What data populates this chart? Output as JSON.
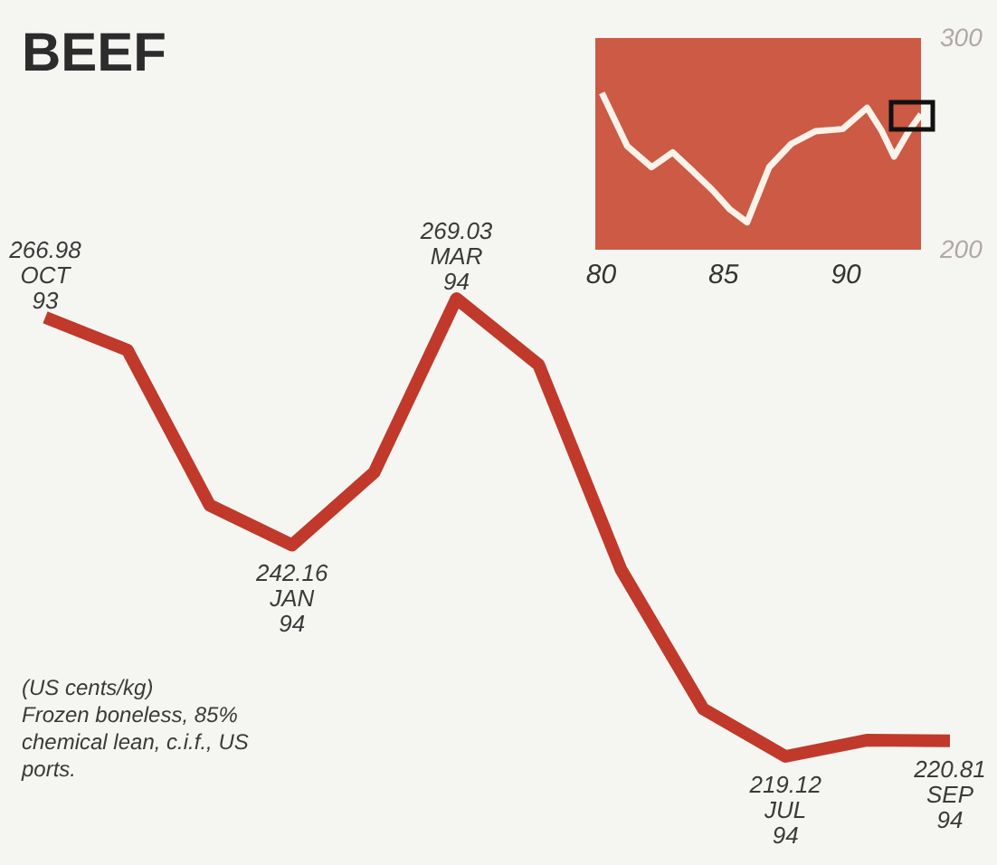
{
  "chart_data": [
    {
      "type": "line",
      "title": "BEEF",
      "categories": [
        "OCT 93",
        null,
        null,
        "JAN 94",
        null,
        "MAR 94",
        null,
        null,
        null,
        "JUL 94",
        null,
        "SEP 94"
      ],
      "values": [
        266.98,
        263.4,
        246.5,
        242.16,
        250.1,
        269.03,
        261.8,
        239.5,
        224.3,
        219.12,
        220.9,
        220.81
      ],
      "value_labels": [
        "266.98",
        null,
        null,
        "242.16",
        null,
        "269.03",
        null,
        null,
        null,
        "219.12",
        null,
        "220.81"
      ],
      "color": "#c0392a",
      "tick_labels": false,
      "annotations": [
        "(US cents/kg)",
        "Frozen boneless, 85% chemical lean, c.i.f., US ports."
      ]
    },
    {
      "type": "line",
      "x": [
        80.07,
        81.1,
        82.1,
        82.96,
        83.7,
        84.6,
        85.3,
        86.0,
        86.9,
        87.8,
        88.8,
        89.9,
        90.9,
        91.5,
        92.0,
        92.6,
        93.1
      ],
      "values": [
        274,
        249,
        239,
        246,
        238,
        228,
        219,
        213,
        239,
        250,
        256,
        257,
        267,
        256,
        244,
        256,
        264
      ],
      "color": "#fbf3ea",
      "xlim": [
        79.8,
        93.1
      ],
      "ylim": [
        200,
        300
      ],
      "xticks": [
        80,
        85,
        90
      ],
      "yticks": [
        200,
        300
      ]
    }
  ]
}
